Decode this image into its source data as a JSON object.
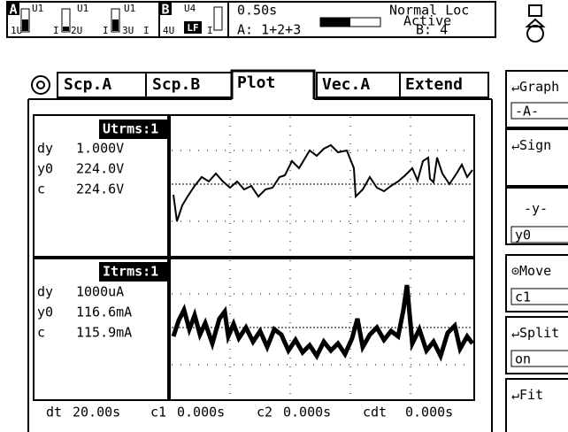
{
  "header": {
    "group_a": {
      "label": "A",
      "channels": [
        {
          "name": "U1",
          "range": "1U",
          "current": "I"
        },
        {
          "name": "U1",
          "range": "2U",
          "current": "I"
        },
        {
          "name": "U1",
          "range": "3U",
          "current": "I"
        }
      ]
    },
    "group_b": {
      "label": "B",
      "channel": {
        "name": "U4",
        "range": "4U",
        "filter": "LF",
        "current": "I"
      }
    },
    "status": {
      "interval": "0.50s",
      "mode": "Normal Loc",
      "state": "Active",
      "wiring_a": "A: 1+2+3",
      "wiring_b": "B: 4"
    }
  },
  "tabs": [
    "Scp.A",
    "Scp.B",
    "Plot",
    "Vec.A",
    "Extend"
  ],
  "panels": [
    {
      "title": "Utrms:1",
      "rows": [
        {
          "key": "dy",
          "value": "1.000V"
        },
        {
          "key": "y0",
          "value": "224.0V"
        },
        {
          "key": "c",
          "value": "224.6V"
        }
      ]
    },
    {
      "title": "Itrms:1",
      "rows": [
        {
          "key": "dy",
          "value": "1000uA"
        },
        {
          "key": "y0",
          "value": "116.6mA"
        },
        {
          "key": "c",
          "value": "115.9mA"
        }
      ]
    }
  ],
  "footer": [
    {
      "key": "dt",
      "value": "20.00s"
    },
    {
      "key": "c1",
      "value": "0.000s"
    },
    {
      "key": "c2",
      "value": "0.000s"
    },
    {
      "key": "cdt",
      "value": "0.000s"
    }
  ],
  "menu": [
    {
      "label": "Graph",
      "value": "-A-"
    },
    {
      "label": "Sign"
    },
    {
      "label": "-y-",
      "value": "y0"
    },
    {
      "label": "Move",
      "value": "c1"
    },
    {
      "label": "Split",
      "value": "on"
    },
    {
      "label": "Fit"
    }
  ]
}
